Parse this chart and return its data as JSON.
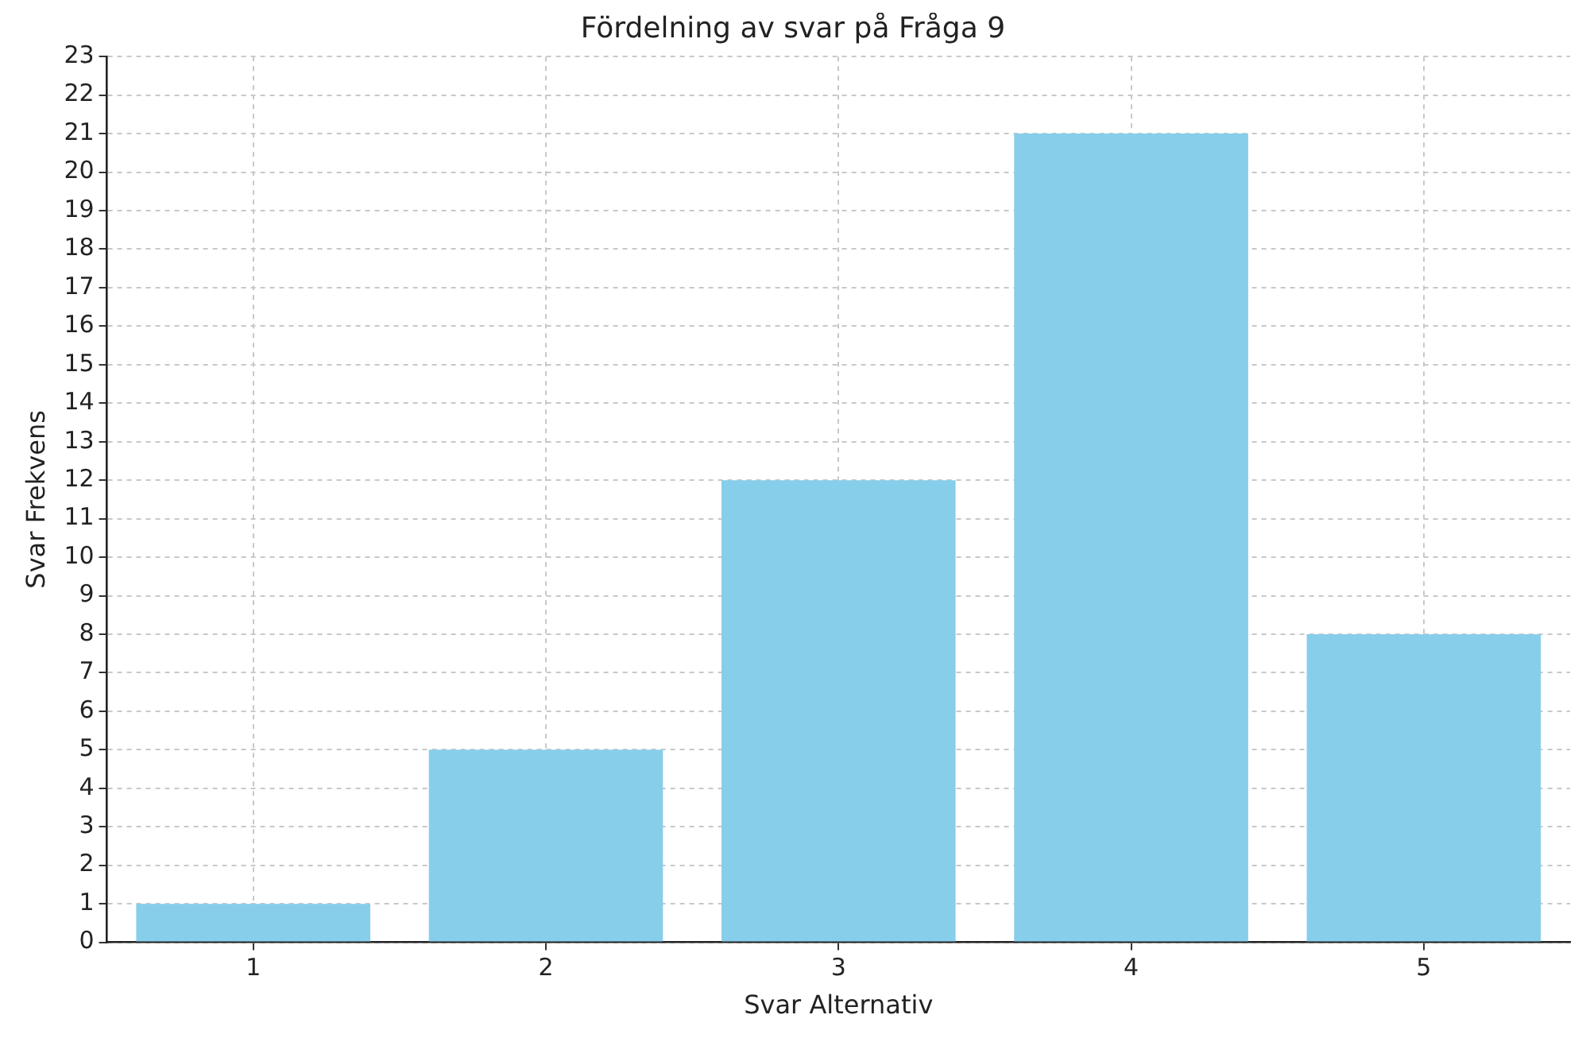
{
  "chart_data": {
    "type": "bar",
    "title": "Fördelning av svar på Fråga 9",
    "xlabel": "Svar Alternativ",
    "ylabel": "Svar Frekvens",
    "categories": [
      "1",
      "2",
      "3",
      "4",
      "5"
    ],
    "values": [
      1,
      5,
      12,
      21,
      8
    ],
    "color": "#87ceeb",
    "ylim": [
      0,
      23
    ],
    "yticks": [
      0,
      1,
      2,
      3,
      4,
      5,
      6,
      7,
      8,
      9,
      10,
      11,
      12,
      13,
      14,
      15,
      16,
      17,
      18,
      19,
      20,
      21,
      22,
      23
    ],
    "grid": true
  }
}
